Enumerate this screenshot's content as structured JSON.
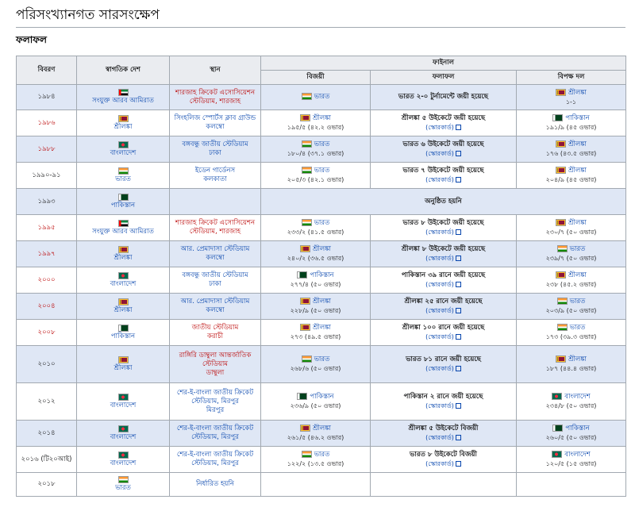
{
  "page_title": "পরিসংখ্যানগত সারসংক্ষেপ",
  "section_title": "ফলাফল",
  "headers": {
    "year": "বিবরণ",
    "host": "স্বাগতিক দেশ",
    "venue": "স্থান",
    "final": "ফাইনাল",
    "winner": "বিজয়ী",
    "result": "ফলাফল",
    "runner": "বিপক্ষ দল"
  },
  "scorecard_label": "(স্কোরকার্ড)",
  "rows": [
    {
      "year": "১৯৮৪",
      "year_red": false,
      "alt": true,
      "host_flag": "uae",
      "host": "সংযুক্ত আরব আমিরাত",
      "venue": [
        "শারজাহ ক্রিকেট এসোসিয়েশন",
        "স্টেডিয়াম, শারজাহ"
      ],
      "venue_red": true,
      "winner_flag": "in",
      "winner": "ভারত",
      "winner_score": "",
      "result": "ভারত ২-০ টুর্নামেন্টে জয়ী হয়েছে",
      "scorecard": false,
      "runner_flag": "lk",
      "runner": "শ্রীলঙ্কা",
      "runner_score": "১-১"
    },
    {
      "year": "১৯৮৬",
      "year_red": true,
      "alt": false,
      "host_flag": "lk",
      "host": "শ্রীলঙ্কা",
      "venue": [
        "সিংহলিজ স্পোর্টস ক্লাব গ্রাউন্ড",
        "কলম্বো"
      ],
      "venue_red": false,
      "winner_flag": "lk",
      "winner": "শ্রীলঙ্কা",
      "winner_score": "১৯৫/৫ (৪২.২ ওভার)",
      "result": "শ্রীলঙ্কা ৫ উইকেটে জয়ী হয়েছে",
      "scorecard": true,
      "runner_flag": "pk",
      "runner": "পাকিস্তান",
      "runner_score": "১৯১/৯ (৪৫ ওভার)"
    },
    {
      "year": "১৯৮৮",
      "year_red": true,
      "alt": true,
      "host_flag": "bd",
      "host": "বাংলাদেশ",
      "venue": [
        "বঙ্গবন্ধু জাতীয় স্টেডিয়াম",
        "ঢাকা"
      ],
      "venue_red": false,
      "winner_flag": "in",
      "winner": "ভারত",
      "winner_score": "১৮০/৪ (৩৭.১ ওভার)",
      "result": "ভারত ৬ উইকেটে জয়ী হয়েছে",
      "scorecard": true,
      "runner_flag": "lk",
      "runner": "শ্রীলঙ্কা",
      "runner_score": "১৭৬ (৪৩.৫ ওভার)"
    },
    {
      "year": "১৯৯০-৯১",
      "year_red": false,
      "alt": false,
      "host_flag": "in",
      "host": "ভারত",
      "venue": [
        "ইডেন গার্ডেনস",
        "কলকাতা"
      ],
      "venue_red": false,
      "winner_flag": "in",
      "winner": "ভারত",
      "winner_score": "২০৫/৩ (৪২.১ ওভার)",
      "result": "ভারত ৭ উইকেটে জয়ী হয়েছে",
      "scorecard": true,
      "runner_flag": "lk",
      "runner": "শ্রীলঙ্কা",
      "runner_score": "২০৪/৯ (৪৫ ওভার)"
    },
    {
      "year": "১৯৯৩",
      "year_red": false,
      "alt": true,
      "host_flag": "pk",
      "host": "পাকিস্তান",
      "special": "অনুষ্ঠিত হয়নি"
    },
    {
      "year": "১৯৯৫",
      "year_red": true,
      "alt": false,
      "host_flag": "uae",
      "host": "সংযুক্ত আরব আমিরাত",
      "venue": [
        "শারজাহ ক্রিকেট এসোসিয়েশন",
        "স্টেডিয়াম, শারজাহ"
      ],
      "venue_red": true,
      "winner_flag": "in",
      "winner": "ভারত",
      "winner_score": "২৩৩/২ (৪১.৫ ওভার)",
      "result": "ভারত ৮ উইকেটে জয়ী হয়েছে",
      "scorecard": true,
      "runner_flag": "lk",
      "runner": "শ্রীলঙ্কা",
      "runner_score": "২৩০/৭ (৫০ ওভার)"
    },
    {
      "year": "১৯৯৭",
      "year_red": true,
      "alt": true,
      "host_flag": "lk",
      "host": "শ্রীলঙ্কা",
      "venue": [
        "আর. প্রেমাদাসা স্টেডিয়াম",
        "কলম্বো"
      ],
      "venue_red": false,
      "winner_flag": "lk",
      "winner": "শ্রীলঙ্কা",
      "winner_score": "২৪০/২ (৩৬.৫ ওভার)",
      "result": "শ্রীলঙ্কা ৮ উইকেটে জয়ী হয়েছে",
      "scorecard": true,
      "runner_flag": "in",
      "runner": "ভারত",
      "runner_score": "২৩৯/৭ (৫০ ওভার)"
    },
    {
      "year": "২০০০",
      "year_red": true,
      "alt": false,
      "host_flag": "bd",
      "host": "বাংলাদেশ",
      "venue": [
        "বঙ্গবন্ধু জাতীয় স্টেডিয়াম",
        "ঢাকা"
      ],
      "venue_red": false,
      "winner_flag": "pk",
      "winner": "পাকিস্তান",
      "winner_score": "২৭৭/৪ (৫০ ওভার)",
      "result": "পাকিস্তান ৩৯ রানে জয়ী হয়েছে",
      "scorecard": true,
      "runner_flag": "lk",
      "runner": "শ্রীলঙ্কা",
      "runner_score": "২৩৮ (৪৫.২ ওভার)"
    },
    {
      "year": "২০০৪",
      "year_red": true,
      "alt": true,
      "host_flag": "lk",
      "host": "শ্রীলঙ্কা",
      "venue": [
        "আর. প্রেমাদাসা স্টেডিয়াম",
        "কলম্বো"
      ],
      "venue_red": false,
      "winner_flag": "lk",
      "winner": "শ্রীলঙ্কা",
      "winner_score": "২২৮/৯ (৫০ ওভার)",
      "result": "শ্রীলঙ্কা ২৫ রানে জয়ী হয়েছে",
      "scorecard": true,
      "runner_flag": "in",
      "runner": "ভারত",
      "runner_score": "২০৩/৯ (৫০ ওভার)"
    },
    {
      "year": "২০০৮",
      "year_red": true,
      "alt": false,
      "host_flag": "pk",
      "host": "পাকিস্তান",
      "venue": [
        "জাতীয় স্টেডিয়াম",
        "করাচী"
      ],
      "venue_red": true,
      "winner_flag": "lk",
      "winner": "শ্রীলঙ্কা",
      "winner_score": "২৭৩ (৪৯.৫ ওভার)",
      "result": "শ্রীলঙ্কা ১০০ রানে জয়ী হয়েছে",
      "scorecard": true,
      "runner_flag": "in",
      "runner": "ভারত",
      "runner_score": "১৭৩ (৩৯.৩ ওভার)"
    },
    {
      "year": "২০১০",
      "year_red": false,
      "alt": true,
      "host_flag": "lk",
      "host": "শ্রীলঙ্কা",
      "venue": [
        "রাঙ্গিরি ডাম্বুলা আন্তর্জাতিক",
        "স্টেডিয়াম",
        "ডাম্বুলা"
      ],
      "venue_red": true,
      "winner_flag": "in",
      "winner": "ভারত",
      "winner_score": "২৬৮/৬ (৫০ ওভার)",
      "result": "ভারত ৮১ রানে জয়ী হয়েছে",
      "scorecard": true,
      "runner_flag": "lk",
      "runner": "শ্রীলঙ্কা",
      "runner_score": "১৮৭ (৪৪.৪ ওভার)"
    },
    {
      "year": "২০১২",
      "year_red": false,
      "alt": false,
      "host_flag": "bd",
      "host": "বাংলাদেশ",
      "venue": [
        "শের-ই-বাংলা জাতীয় ক্রিকেট",
        "স্টেডিয়াম, মিরপুর",
        "মিরপুর"
      ],
      "venue_red": false,
      "winner_flag": "pk",
      "winner": "পাকিস্তান",
      "winner_score": "২৩৬/৯ (৫০ ওভার)",
      "result": "পাকিস্তান ২ রানে জয়ী হয়েছে",
      "scorecard": true,
      "runner_flag": "bd",
      "runner": "বাংলাদেশ",
      "runner_score": "২৩৪/৮ (৫০ ওভার)"
    },
    {
      "year": "২০১৪",
      "year_red": false,
      "alt": true,
      "host_flag": "bd",
      "host": "বাংলাদেশ",
      "venue": [
        "শের-ই-বাংলা জাতীয় ক্রিকেট",
        "স্টেডিয়াম, মিরপুর"
      ],
      "venue_red": false,
      "winner_flag": "lk",
      "winner": "শ্রীলঙ্কা",
      "winner_score": "২৬১/৫ (৪৬.২ ওভার)",
      "result": "শ্রীলঙ্কা ৫ উইকেটে বিজয়ী",
      "scorecard": true,
      "runner_flag": "pk",
      "runner": "পাকিস্তান",
      "runner_score": "২৬০/৫ (৫০ ওভার)"
    },
    {
      "year": "২০১৬ (টি২০আই)",
      "year_red": false,
      "alt": false,
      "host_flag": "bd",
      "host": "বাংলাদেশ",
      "venue": [
        "শের-ই-বাংলা জাতীয় ক্রিকেট",
        "স্টেডিয়াম, মিরপুর"
      ],
      "venue_red": false,
      "winner_flag": "in",
      "winner": "ভারত",
      "winner_score": "১২২/২ (১৩.৫ ওভার)",
      "result": "ভারত ৮ উইকেটে বিজয়ী",
      "scorecard": true,
      "runner_flag": "bd",
      "runner": "বাংলাদেশ",
      "runner_score": "১২০/৫ (১৫ ওভার)"
    },
    {
      "year": "২০১৮",
      "year_red": false,
      "alt": false,
      "host_flag": "in",
      "host": "ভারত",
      "venue": [
        "নির্ধারিত হয়নি"
      ],
      "venue_red": false,
      "empty_final": true
    }
  ]
}
